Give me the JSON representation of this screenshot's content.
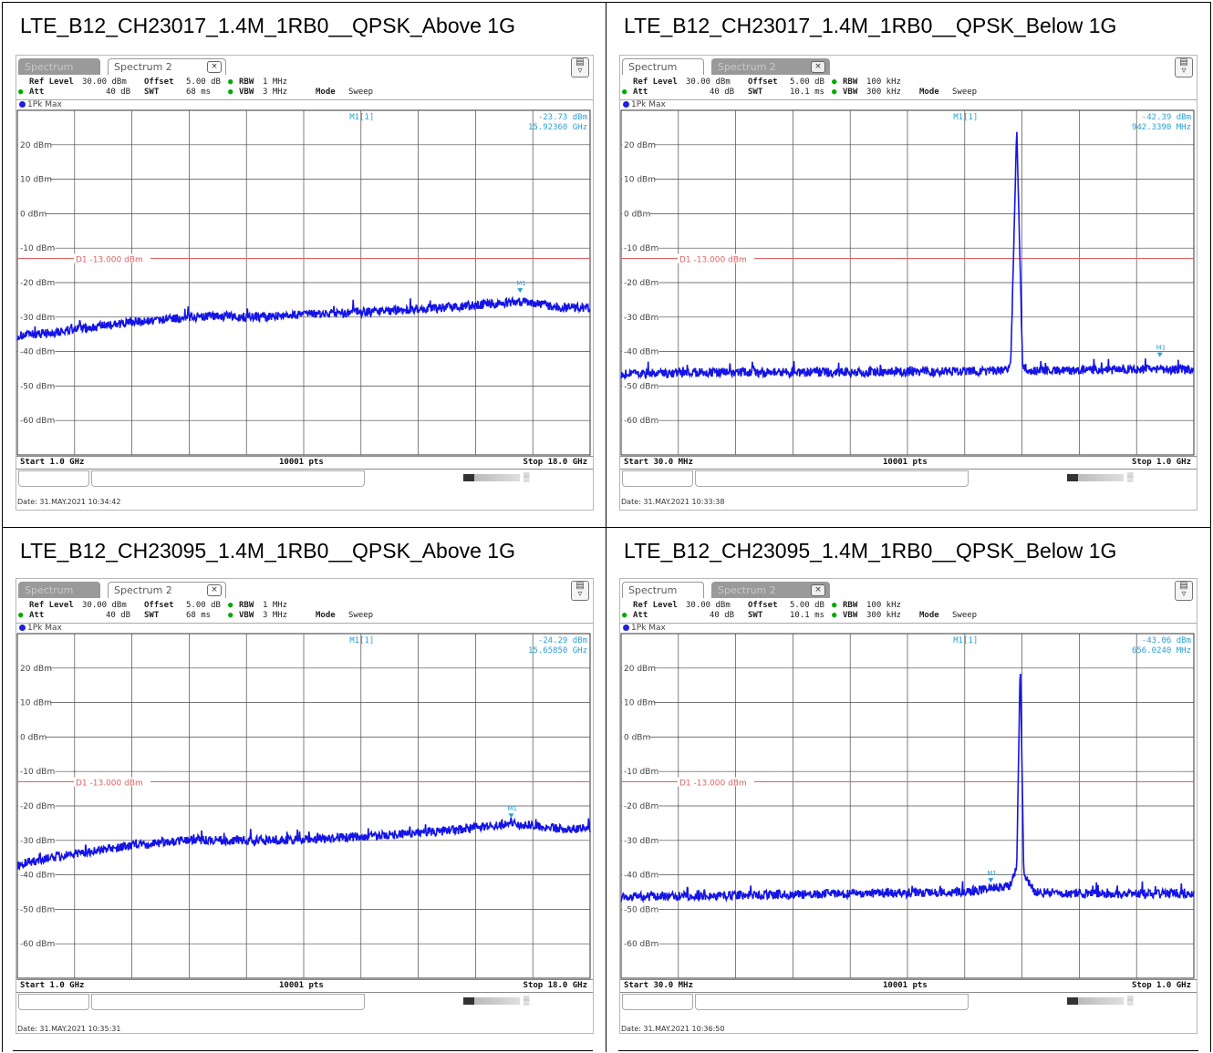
{
  "panels": [
    {
      "caption": "LTE_B12_CH23017_1.4M_1RB0__QPSK_Above 1G",
      "tab_active": "Spectrum 2",
      "tab_inactive": "Spectrum",
      "active_tab_index": 2,
      "settings": {
        "ref_level_label": "Ref Level",
        "ref_level": "30.00 dBm",
        "offset_label": "Offset",
        "offset": "5.00 dB",
        "rbw_label": "RBW",
        "rbw": "1 MHz",
        "att_label": "Att",
        "att": "40 dB",
        "swt_label": "SWT",
        "swt": "68 ms",
        "vbw_label": "VBW",
        "vbw": "3 MHz",
        "mode_label": "Mode",
        "mode": "Sweep"
      },
      "trace_label": "1Pk Max",
      "marker_name": "M1[1]",
      "marker_level": "-23.73 dBm",
      "marker_freq": "15.92360 GHz",
      "display_line": "D1 -13.000 dBm",
      "start": "Start 1.0 GHz",
      "points": "10001 pts",
      "stop": "Stop 18.0 GHz",
      "date": "Date: 31.MAY.2021  10:34:42",
      "chart_data": {
        "type": "line",
        "x_unit": "GHz",
        "xlim": [
          1.0,
          18.0
        ],
        "y_unit": "dBm",
        "ylim": [
          -70,
          30
        ],
        "y_tick_labels": [
          "20 dBm",
          "10 dBm",
          "0 dBm",
          "-10 dBm",
          "-20 dBm",
          "-30 dBm",
          "-40 dBm",
          "-50 dBm",
          "-60 dBm"
        ],
        "reference_line": {
          "label": "D1 -13.000 dBm",
          "value": -13.0
        },
        "marker": {
          "name": "M1",
          "x": 15.9236,
          "y": -23.73
        },
        "series": [
          {
            "x": [
              1.0,
              2.0,
              4.0,
              6.0,
              7.0,
              8.0,
              10.0,
              12.0,
              14.0,
              15.9,
              17.0,
              18.0
            ],
            "y": [
              -35.5,
              -34.5,
              -32.0,
              -30.0,
              -29.8,
              -30.0,
              -29.0,
              -28.2,
              -27.0,
              -25.5,
              -27.0,
              -27.5
            ]
          }
        ]
      }
    },
    {
      "caption": "LTE_B12_CH23017_1.4M_1RB0__QPSK_Below 1G",
      "tab_active": "Spectrum",
      "tab_inactive": "Spectrum 2",
      "active_tab_index": 1,
      "settings": {
        "ref_level_label": "Ref Level",
        "ref_level": "30.00 dBm",
        "offset_label": "Offset",
        "offset": "5.00 dB",
        "rbw_label": "RBW",
        "rbw": "100 kHz",
        "att_label": "Att",
        "att": "40 dB",
        "swt_label": "SWT",
        "swt": "10.1 ms",
        "vbw_label": "VBW",
        "vbw": "300 kHz",
        "mode_label": "Mode",
        "mode": "Sweep"
      },
      "trace_label": "1Pk Max",
      "marker_name": "M1[1]",
      "marker_level": "-42.39 dBm",
      "marker_freq": "942.3390 MHz",
      "display_line": "D1 -13.000 dBm",
      "start": "Start 30.0 MHz",
      "points": "10001 pts",
      "stop": "Stop 1.0 GHz",
      "date": "Date: 31.MAY.2021  10:33:38",
      "chart_data": {
        "type": "line",
        "x_unit": "MHz",
        "xlim": [
          30,
          1000
        ],
        "y_unit": "dBm",
        "ylim": [
          -70,
          30
        ],
        "y_tick_labels": [
          "20 dBm",
          "10 dBm",
          "0 dBm",
          "-10 dBm",
          "-20 dBm",
          "-30 dBm",
          "-40 dBm",
          "-50 dBm",
          "-60 dBm"
        ],
        "reference_line": {
          "label": "D1 -13.000 dBm",
          "value": -13.0
        },
        "marker": {
          "name": "M1",
          "x": 942.339,
          "y": -42.39
        },
        "series": [
          {
            "x": [
              30,
              200,
              400,
              600,
              680,
              690,
              700,
              710,
              720,
              800,
              942,
              1000
            ],
            "y": [
              -46.5,
              -46.0,
              -46.0,
              -45.8,
              -45.5,
              -44.0,
              25.0,
              -44.0,
              -45.5,
              -45.5,
              -45.0,
              -45.5
            ]
          }
        ]
      }
    },
    {
      "caption": "LTE_B12_CH23095_1.4M_1RB0__QPSK_Above 1G",
      "tab_active": "Spectrum 2",
      "tab_inactive": "Spectrum",
      "active_tab_index": 2,
      "settings": {
        "ref_level_label": "Ref Level",
        "ref_level": "30.00 dBm",
        "offset_label": "Offset",
        "offset": "5.00 dB",
        "rbw_label": "RBW",
        "rbw": "1 MHz",
        "att_label": "Att",
        "att": "40 dB",
        "swt_label": "SWT",
        "swt": "68 ms",
        "vbw_label": "VBW",
        "vbw": "3 MHz",
        "mode_label": "Mode",
        "mode": "Sweep"
      },
      "trace_label": "1Pk Max",
      "marker_name": "M1[1]",
      "marker_level": "-24.29 dBm",
      "marker_freq": "15.65850 GHz",
      "display_line": "D1 -13.000 dBm",
      "start": "Start 1.0 GHz",
      "points": "10001 pts",
      "stop": "Stop 18.0 GHz",
      "date": "Date: 31.MAY.2021  10:35:31",
      "chart_data": {
        "type": "line",
        "x_unit": "GHz",
        "xlim": [
          1.0,
          18.0
        ],
        "y_unit": "dBm",
        "ylim": [
          -70,
          30
        ],
        "y_tick_labels": [
          "20 dBm",
          "10 dBm",
          "0 dBm",
          "-10 dBm",
          "-20 dBm",
          "-30 dBm",
          "-40 dBm",
          "-50 dBm",
          "-60 dBm"
        ],
        "reference_line": {
          "label": "D1 -13.000 dBm",
          "value": -13.0
        },
        "marker": {
          "name": "M1",
          "x": 15.6585,
          "y": -24.29
        },
        "series": [
          {
            "x": [
              1.0,
              2.0,
              4.0,
              6.0,
              8.0,
              10.0,
              12.0,
              14.0,
              15.6,
              17.0,
              18.0
            ],
            "y": [
              -37.0,
              -35.0,
              -32.0,
              -30.0,
              -30.0,
              -29.5,
              -28.5,
              -27.0,
              -25.0,
              -26.5,
              -27.0
            ]
          }
        ]
      }
    },
    {
      "caption": "LTE_B12_CH23095_1.4M_1RB0__QPSK_Below 1G",
      "tab_active": "Spectrum",
      "tab_inactive": "Spectrum 2",
      "active_tab_index": 1,
      "settings": {
        "ref_level_label": "Ref Level",
        "ref_level": "30.00 dBm",
        "offset_label": "Offset",
        "offset": "5.00 dB",
        "rbw_label": "RBW",
        "rbw": "100 kHz",
        "att_label": "Att",
        "att": "40 dB",
        "swt_label": "SWT",
        "swt": "10.1 ms",
        "vbw_label": "VBW",
        "vbw": "300 kHz",
        "mode_label": "Mode",
        "mode": "Sweep"
      },
      "trace_label": "1Pk Max",
      "marker_name": "M1[1]",
      "marker_level": "-43.06 dBm",
      "marker_freq": "656.0240 MHz",
      "display_line": "D1 -13.000 dBm",
      "start": "Start 30.0 MHz",
      "points": "10001 pts",
      "stop": "Stop 1.0 GHz",
      "date": "Date: 31.MAY.2021  10:36:50",
      "chart_data": {
        "type": "line",
        "x_unit": "MHz",
        "xlim": [
          30,
          1000
        ],
        "y_unit": "dBm",
        "ylim": [
          -70,
          30
        ],
        "y_tick_labels": [
          "20 dBm",
          "10 dBm",
          "0 dBm",
          "-10 dBm",
          "-20 dBm",
          "-30 dBm",
          "-40 dBm",
          "-50 dBm",
          "-60 dBm"
        ],
        "reference_line": {
          "label": "D1 -13.000 dBm",
          "value": -13.0
        },
        "marker": {
          "name": "M1",
          "x": 656.024,
          "y": -43.06
        },
        "series": [
          {
            "x": [
              30,
              200,
              400,
              600,
              656,
              690,
              700,
              706,
              712,
              730,
              800,
              1000
            ],
            "y": [
              -46.5,
              -46.0,
              -45.5,
              -45.0,
              -44.0,
              -43.0,
              -38.0,
              22.0,
              -40.0,
              -45.0,
              -45.5,
              -45.5
            ]
          }
        ]
      }
    }
  ],
  "colors": {
    "trace": "#1414e6",
    "display_line": "#e06060",
    "marker": "#2a9fd6",
    "grid": "#4a4a4a",
    "gridline_fine": "#c8c8c8"
  }
}
